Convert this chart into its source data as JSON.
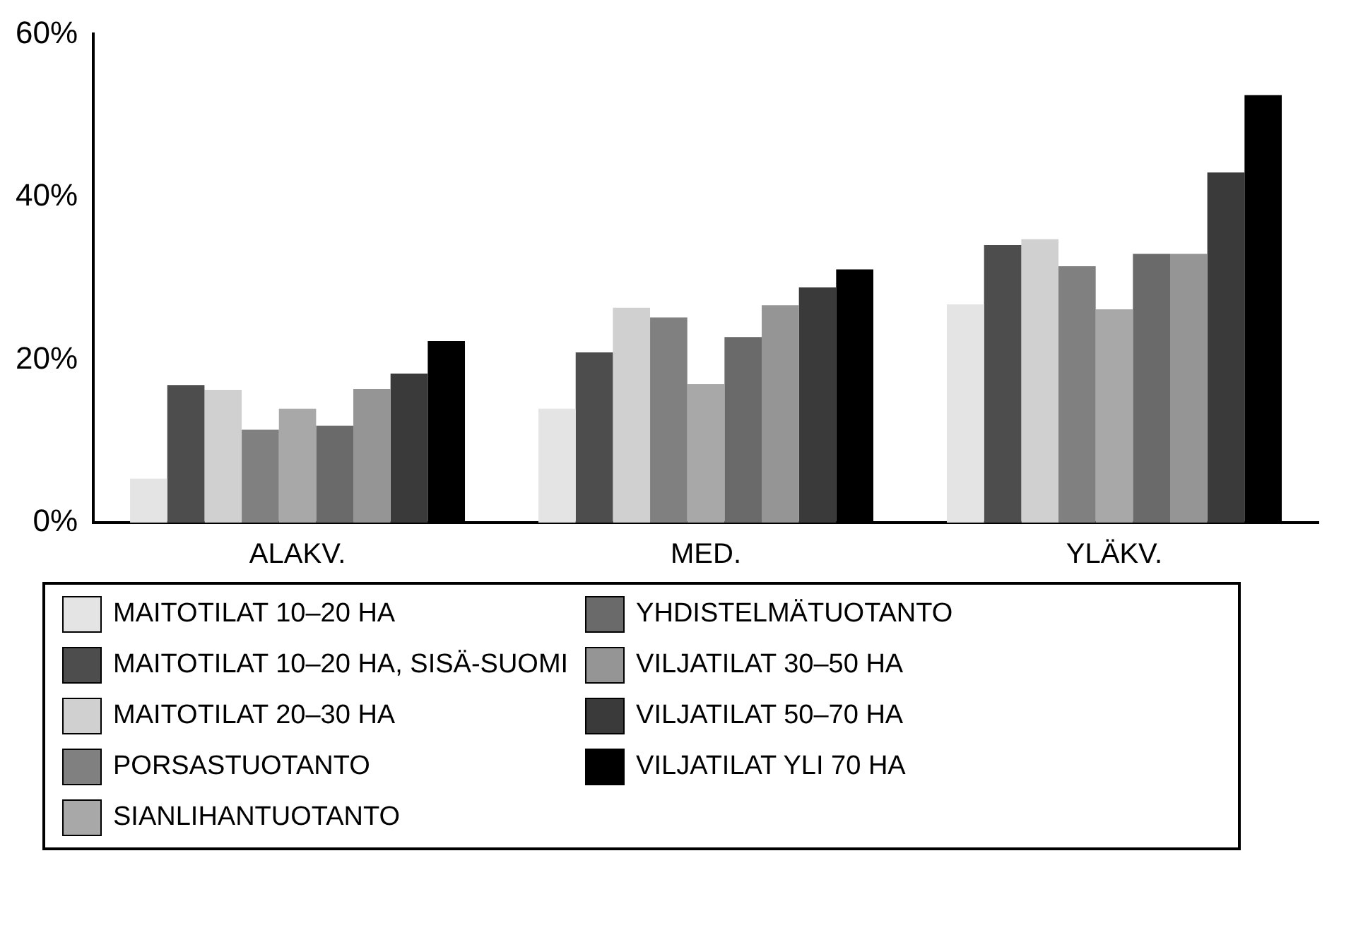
{
  "chart_data": {
    "type": "bar",
    "categories": [
      "ALAKV.",
      "MED.",
      "YLÄKV."
    ],
    "series": [
      {
        "name": "MAITOTILAT 10–20 HA",
        "color": "#e4e4e4",
        "values": [
          5.4,
          14.0,
          26.8
        ]
      },
      {
        "name": "MAITOTILAT 10–20 HA, SISÄ-SUOMI",
        "color": "#4d4d4d",
        "values": [
          16.9,
          20.9,
          34.1
        ]
      },
      {
        "name": "MAITOTILAT 20–30 HA",
        "color": "#d0d0d0",
        "values": [
          16.3,
          26.4,
          34.8
        ]
      },
      {
        "name": "PORSASTUOTANTO",
        "color": "#808080",
        "values": [
          11.4,
          25.2,
          31.5
        ]
      },
      {
        "name": "SIANLIHANTUOTANTO",
        "color": "#a8a8a8",
        "values": [
          14.0,
          17.0,
          26.2
        ]
      },
      {
        "name": "YHDISTELMÄTUOTANTO",
        "color": "#6a6a6a",
        "values": [
          11.9,
          22.8,
          33.0
        ]
      },
      {
        "name": "VILJATILAT 30–50 HA",
        "color": "#959595",
        "values": [
          16.4,
          26.7,
          33.0
        ]
      },
      {
        "name": "VILJATILAT 50–70 HA",
        "color": "#3a3a3a",
        "values": [
          18.3,
          28.9,
          43.0
        ]
      },
      {
        "name": "VILJATILAT YLI 70 HA",
        "color": "#000000",
        "values": [
          22.3,
          31.1,
          52.5
        ]
      }
    ],
    "ylim": [
      0,
      60
    ],
    "yticks": [
      {
        "value": 0,
        "label": "0%"
      },
      {
        "value": 20,
        "label": "20%"
      },
      {
        "value": 40,
        "label": "40%"
      },
      {
        "value": 60,
        "label": "60%"
      }
    ],
    "grid": false,
    "legend": "bottom"
  }
}
